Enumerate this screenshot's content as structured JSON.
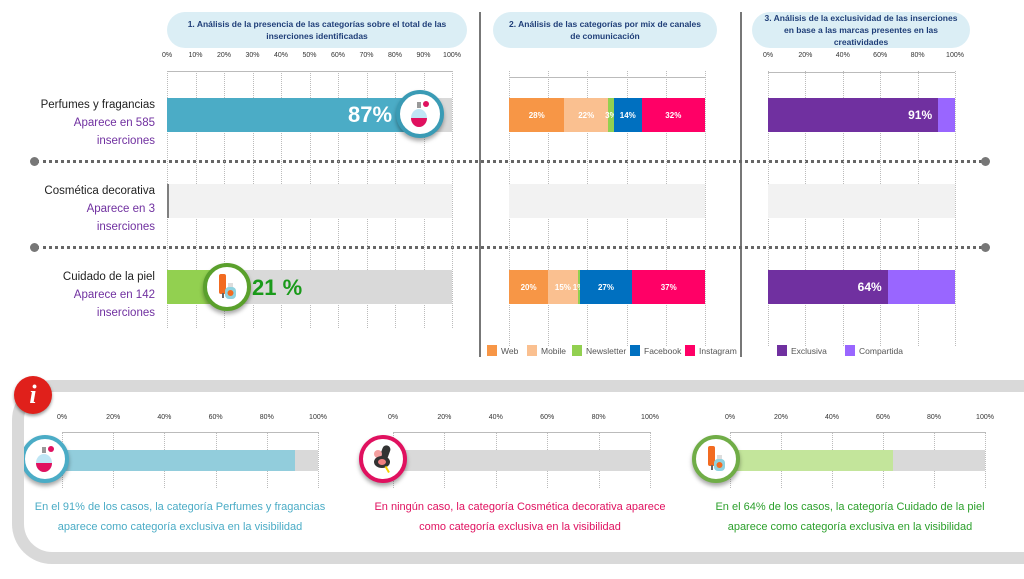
{
  "chart_data": [
    {
      "type": "bar",
      "title": "1. Análisis de la presencia de las categorías sobre el total de las inserciones identificadas",
      "ticks": [
        "0%",
        "10%",
        "20%",
        "30%",
        "40%",
        "50%",
        "60%",
        "70%",
        "80%",
        "90%",
        "100%"
      ],
      "xlim": [
        0,
        100
      ],
      "categories": [
        "Perfumes y fragancias",
        "Cosmética decorativa",
        "Cuidado de la piel"
      ],
      "subtitles": [
        "Aparece en 585",
        "Aparece en 3",
        "Aparece en 142"
      ],
      "subtitles2": [
        "inserciones",
        "inserciones",
        "inserciones"
      ],
      "values": [
        87,
        0.3,
        21
      ],
      "labels": [
        "87%",
        "",
        "21 %"
      ],
      "colors": [
        "#4bacc6",
        "#7f7f7f",
        "#92d050"
      ],
      "track_colors": [
        "#d9d9d9",
        "#f2f2f2",
        "#d9d9d9"
      ],
      "icons": [
        "perfume-icon",
        "",
        "skincare-icon"
      ]
    },
    {
      "type": "bar",
      "stacked": true,
      "title": "2. Análisis de las categorías por mix de canales de comunicación",
      "categories": [
        "Perfumes y fragancias",
        "Cosmética decorativa",
        "Cuidado de la piel"
      ],
      "series": [
        {
          "name": "Web",
          "color": "#f79646",
          "values": [
            28,
            0,
            20
          ]
        },
        {
          "name": "Mobile",
          "color": "#fac090",
          "values": [
            22,
            0,
            15
          ]
        },
        {
          "name": "Newsletter",
          "color": "#92d050",
          "values": [
            3,
            0,
            1
          ]
        },
        {
          "name": "Facebook",
          "color": "#0070c0",
          "values": [
            14,
            0,
            27
          ]
        },
        {
          "name": "Instagram",
          "color": "#ff0066",
          "values": [
            32,
            0,
            37
          ]
        }
      ],
      "xlim": [
        0,
        100
      ],
      "legend": "bottom"
    },
    {
      "type": "bar",
      "stacked": true,
      "title": "3. Análisis de la exclusividad de las inserciones  en base a  las marcas  presentes en las creatividades",
      "ticks": [
        "0%",
        "20%",
        "40%",
        "60%",
        "80%",
        "100%"
      ],
      "xlim": [
        0,
        100
      ],
      "categories": [
        "Perfumes y fragancias",
        "Cosmética decorativa",
        "Cuidado de la piel"
      ],
      "series": [
        {
          "name": "Exclusiva",
          "color": "#7030a0",
          "values": [
            91,
            0,
            64
          ],
          "labels": [
            "91%",
            "",
            "64%"
          ]
        },
        {
          "name": "Compartida",
          "color": "#9966ff",
          "values": [
            9,
            0,
            36
          ]
        }
      ],
      "legend": "bottom"
    },
    {
      "type": "bar",
      "ticks": [
        "0%",
        "20%",
        "40%",
        "60%",
        "80%",
        "100%"
      ],
      "xlim": [
        0,
        100
      ],
      "values": [
        91,
        0,
        64
      ],
      "colors": [
        "#92cddc",
        "#ff0066",
        "#c3e59b"
      ],
      "ring_colors": [
        "#4bacc6",
        "#e0115f",
        "#70ad47"
      ],
      "icons": [
        "perfume-icon",
        "makeup-compact-icon",
        "skincare-icon"
      ],
      "notes": [
        [
          "En el 91% de los casos, la categoría Perfumes  y fragancias",
          "aparece como categoría exclusiva  en la visibilidad"
        ],
        [
          "En ningún caso, la categoría Cosmética  decorativa aparece",
          "como categoría exclusiva  en la visibilidad"
        ],
        [
          "En el 64% de los casos, la categoría Cuidado de la piel",
          "aparece como categoría exclusiva  en la visibilidad"
        ]
      ],
      "note_colors": [
        "#4bacc6",
        "#e0115f",
        "#2ca02c"
      ]
    }
  ],
  "info_icon": "info-icon"
}
